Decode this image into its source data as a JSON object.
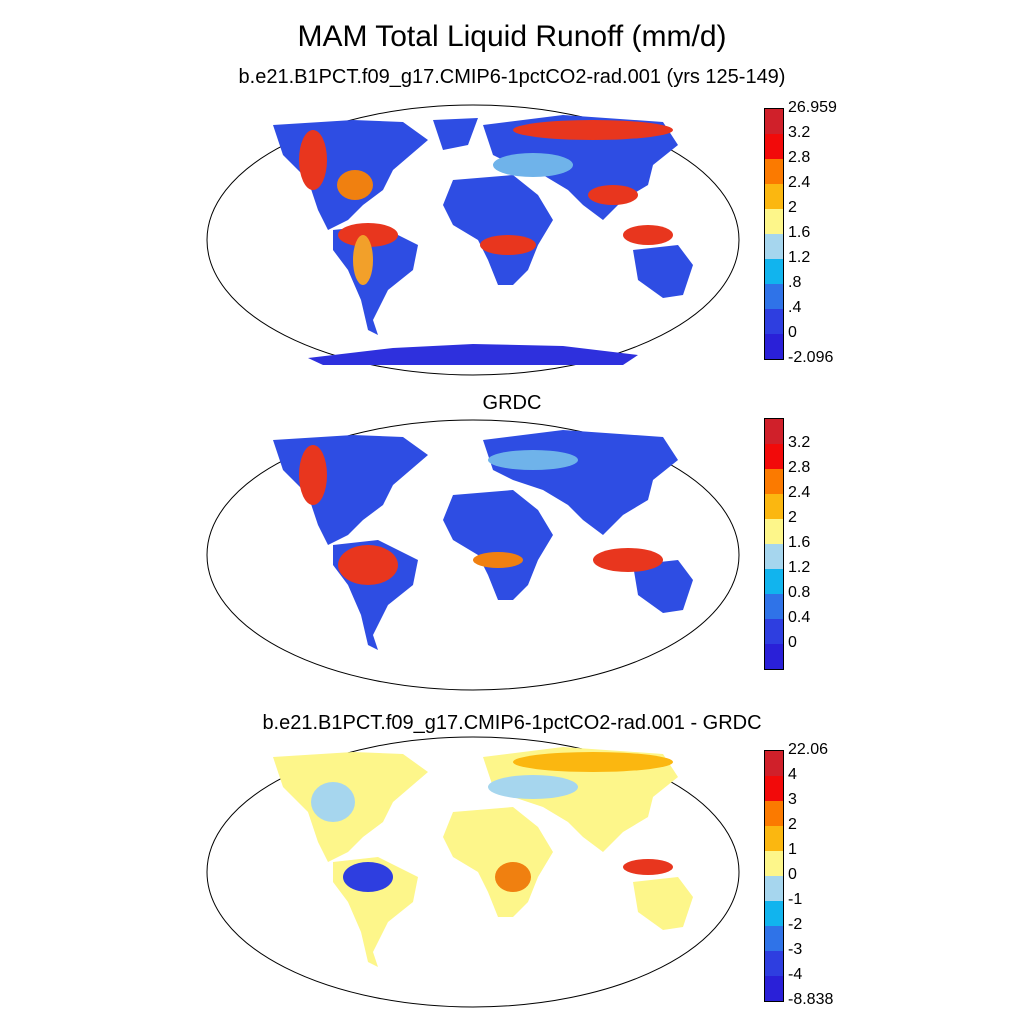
{
  "title": "MAM Total Liquid Runoff (mm/d)",
  "panels": [
    {
      "id": "model",
      "subtitle": "b.e21.B1PCT.f09_g17.CMIP6-1pctCO2-rad.001 (yrs 125-149)",
      "colorbar": {
        "colors": [
          "#2a20d8",
          "#2e3ee0",
          "#2f73e8",
          "#11b4ee",
          "#a6d6ee",
          "#fdf68a",
          "#fbb710",
          "#fb7a00",
          "#f20a0a",
          "#d0202a"
        ],
        "labels": [
          "26.959",
          "3.2",
          "2.8",
          "2.4",
          "2",
          "1.6",
          "1.2",
          ".8",
          ".4",
          "0",
          "-2.096"
        ]
      }
    },
    {
      "id": "grdc",
      "subtitle": "GRDC",
      "colorbar": {
        "colors": [
          "#2a20d8",
          "#2e3ee0",
          "#2f73e8",
          "#11b4ee",
          "#a6d6ee",
          "#fdf68a",
          "#fbb710",
          "#fb7a00",
          "#f20a0a",
          "#d0202a"
        ],
        "labels": [
          "3.2",
          "2.8",
          "2.4",
          "2",
          "1.6",
          "1.2",
          "0.8",
          "0.4",
          "0"
        ]
      }
    },
    {
      "id": "diff",
      "subtitle": "b.e21.B1PCT.f09_g17.CMIP6-1pctCO2-rad.001 - GRDC",
      "colorbar": {
        "colors": [
          "#2a20d8",
          "#2e3ee0",
          "#2f73e8",
          "#11b4ee",
          "#a6d6ee",
          "#fdf68a",
          "#fbb710",
          "#fb7a00",
          "#f20a0a",
          "#d0202a"
        ],
        "labels": [
          "22.06",
          "4",
          "3",
          "2",
          "1",
          "0",
          "-1",
          "-2",
          "-3",
          "-4",
          "-8.838"
        ]
      }
    }
  ]
}
